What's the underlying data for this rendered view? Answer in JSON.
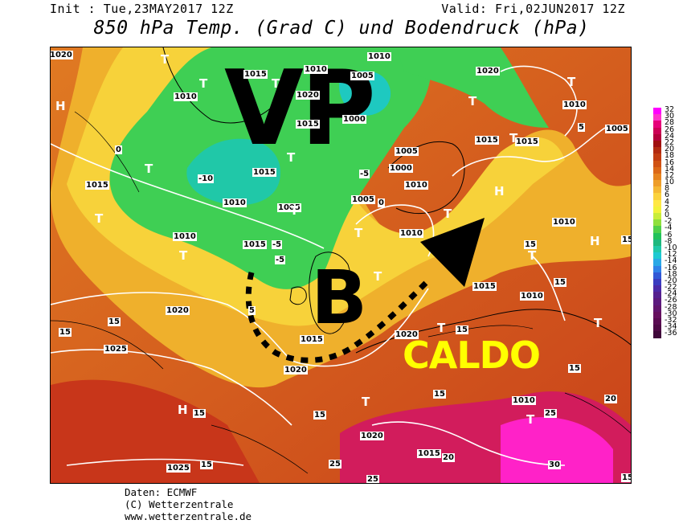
{
  "header": {
    "init": "Init : Tue,23MAY2017 12Z",
    "valid": "Valid: Fri,02JUN2017 12Z",
    "title": "850 hPa Temp. (Grad C) und Bodendruck (hPa)"
  },
  "annotations": {
    "vp": "VP",
    "b": "B",
    "caldo": "CALDO"
  },
  "map_labels": {
    "isobars": [
      "1020",
      "1010",
      "1015",
      "1020",
      "1010",
      "1005",
      "1000",
      "1015",
      "1005",
      "1000",
      "1010",
      "1005",
      "1015",
      "1010",
      "1005",
      "1010",
      "1015",
      "1010",
      "1015",
      "1010",
      "1020",
      "1015",
      "1020",
      "1025",
      "1020",
      "1015",
      "1020",
      "1025",
      "1010",
      "1015",
      "1010",
      "1020",
      "1015",
      "1010",
      "1015",
      "1005",
      "1010"
    ],
    "isotherms": [
      "0",
      "-10",
      "-5",
      "-5",
      "-5",
      "0",
      "5",
      "5",
      "15",
      "15",
      "15",
      "15",
      "15",
      "15",
      "15",
      "15",
      "15",
      "15",
      "25",
      "20",
      "20",
      "25",
      "30",
      "25",
      "15",
      "15"
    ],
    "symbols": [
      "H",
      "T",
      "T",
      "T",
      "T",
      "T",
      "T",
      "T",
      "T",
      "T",
      "T",
      "T",
      "H",
      "H",
      "T",
      "T",
      "T",
      "H",
      "T",
      "T",
      "T",
      "T",
      "T"
    ]
  },
  "legend": {
    "values": [
      "32",
      "30",
      "28",
      "26",
      "24",
      "22",
      "20",
      "18",
      "16",
      "14",
      "12",
      "10",
      "8",
      "6",
      "4",
      "2",
      "0",
      "-2",
      "-4",
      "-6",
      "-8",
      "-10",
      "-12",
      "-14",
      "-16",
      "-18",
      "-20",
      "-22",
      "-24",
      "-26",
      "-28",
      "-30",
      "-32",
      "-34",
      "-36"
    ],
    "colors": [
      "#ff00ff",
      "#ff33cc",
      "#e6007a",
      "#cc0055",
      "#b3003c",
      "#a01010",
      "#b22a10",
      "#c23d12",
      "#d05214",
      "#dc6818",
      "#e68420",
      "#ee9e2a",
      "#f5b834",
      "#fbd23c",
      "#ffe845",
      "#f2f23a",
      "#c8ed3a",
      "#8fe03c",
      "#4fd04a",
      "#22c25a",
      "#1fb87e",
      "#20c8a8",
      "#1ec9d2",
      "#2aa8e6",
      "#2f82e8",
      "#3158d6",
      "#3a3cc0",
      "#4a2aa8",
      "#55208f",
      "#5c1a7e",
      "#61156e",
      "#66105f",
      "#5a0c52",
      "#4e0a46",
      "#40083a"
    ]
  },
  "credits": {
    "line1": "Daten: ECMWF",
    "line2": "(C) Wetterzentrale",
    "line3": "www.wetterzentrale.de"
  },
  "colors": {
    "warm": "#d9641e",
    "mild": "#f2c22c",
    "cold": "#2fc85a",
    "hot": "#e0197f",
    "annotation_yellow": "#ffff00"
  }
}
